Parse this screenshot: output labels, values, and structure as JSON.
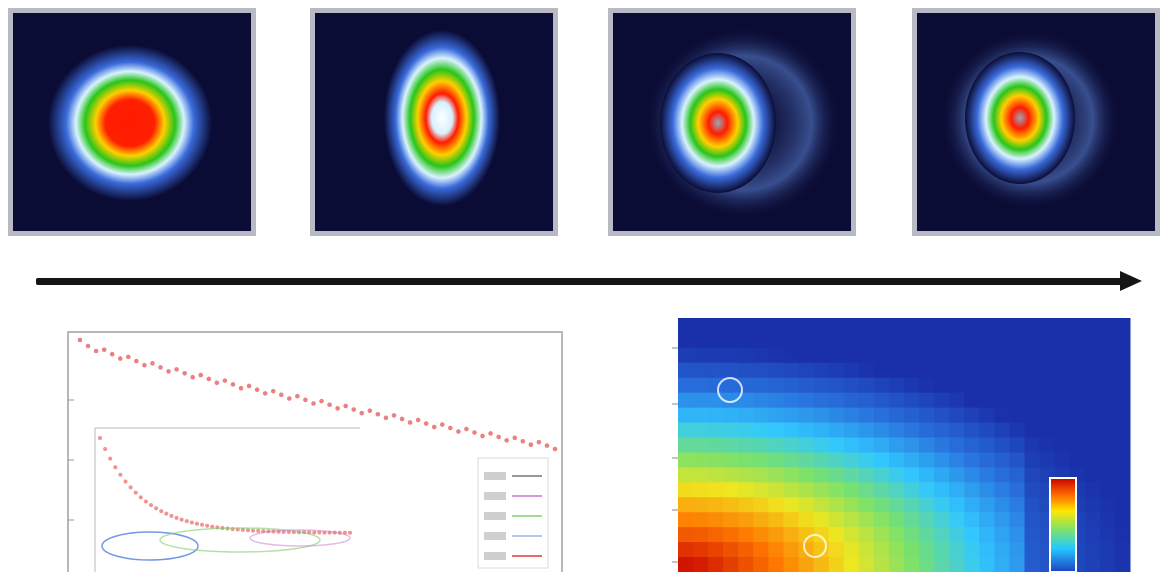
{
  "beam_profiles": [
    {
      "id": "frame-1",
      "shape": "circular",
      "colormap": "jet"
    },
    {
      "id": "frame-2",
      "shape": "elliptical",
      "colormap": "jet"
    },
    {
      "id": "frame-3",
      "shape": "split-ring",
      "colormap": "jet"
    },
    {
      "id": "frame-4",
      "shape": "split-ring",
      "colormap": "jet"
    }
  ],
  "arrow": {
    "direction": "right"
  },
  "colors": {
    "panel_bg": "#0b0c35",
    "frame": "#b9b9c4",
    "arrow": "#151515",
    "curve": "#e23b3b"
  },
  "line_plot": {
    "series_color": "#e23b3b",
    "legend_entries": [
      "",
      "",
      "",
      "",
      ""
    ]
  },
  "heatmap": {
    "colormap": "jet",
    "colorbar": true
  }
}
